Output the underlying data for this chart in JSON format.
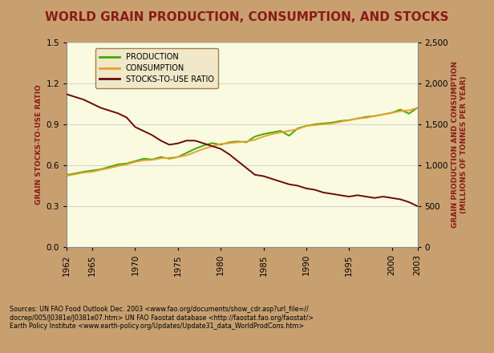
{
  "title": "WORLD GRAIN PRODUCTION, CONSUMPTION, AND STOCKS",
  "title_color": "#8B1A1A",
  "outer_bg": "#C8A070",
  "plot_bg": "#FAFAE0",
  "xlabel_ticks": [
    1962,
    1965,
    1970,
    1975,
    1980,
    1985,
    1990,
    1995,
    2000,
    2003
  ],
  "left_ylabel": "GRAIN STOCKS-TO-USE RATIO",
  "right_ylabel": "GRAIN PRODUCTION AND CONSUMPTION\n(MILLIONS OF TONNES PER YEAR)",
  "left_ylim": [
    0,
    1.5
  ],
  "right_ylim": [
    0,
    2500
  ],
  "left_yticks": [
    0,
    0.3,
    0.6,
    0.9,
    1.2,
    1.5
  ],
  "right_yticks": [
    0,
    500,
    1000,
    1500,
    2000,
    2500
  ],
  "source_text": "Sources: UN FAO Food Outlook Dec. 2003 <www.fao.org/documents/show_cdr.asp?url_file=//\ndocrep/005/J0381e/J0381e07.htm> UN FAO Faostat database <http://faostat.fao.org/faostat/>\nEarth Policy Institute <www.earth-policy.org/Updates/Update31_data_WorldProdCons.htm>",
  "legend_labels": [
    "PRODUCTION",
    "CONSUMPTION",
    "STOCKS-TO-USE RATIO"
  ],
  "prod_color": "#44AA00",
  "cons_color": "#E8A030",
  "stock_color": "#6B0A0A",
  "years": [
    1962,
    1963,
    1964,
    1965,
    1966,
    1967,
    1968,
    1969,
    1970,
    1971,
    1972,
    1973,
    1974,
    1975,
    1976,
    1977,
    1978,
    1979,
    1980,
    1981,
    1982,
    1983,
    1984,
    1985,
    1986,
    1987,
    1988,
    1989,
    1990,
    1991,
    1992,
    1993,
    1994,
    1995,
    1996,
    1997,
    1998,
    1999,
    2000,
    2001,
    2002,
    2003
  ],
  "production": [
    880,
    900,
    920,
    935,
    950,
    980,
    1010,
    1020,
    1050,
    1080,
    1070,
    1100,
    1080,
    1100,
    1150,
    1200,
    1240,
    1270,
    1250,
    1280,
    1290,
    1280,
    1350,
    1380,
    1400,
    1420,
    1360,
    1450,
    1480,
    1500,
    1510,
    1520,
    1540,
    1550,
    1570,
    1590,
    1600,
    1620,
    1640,
    1680,
    1630,
    1700
  ],
  "consumption": [
    870,
    890,
    910,
    920,
    945,
    965,
    990,
    1010,
    1040,
    1060,
    1065,
    1085,
    1090,
    1100,
    1120,
    1160,
    1200,
    1230,
    1260,
    1270,
    1280,
    1290,
    1310,
    1350,
    1380,
    1400,
    1420,
    1440,
    1480,
    1490,
    1500,
    1510,
    1530,
    1550,
    1570,
    1580,
    1600,
    1620,
    1640,
    1660,
    1670,
    1700
  ],
  "stocks_ratio": [
    1.12,
    1.1,
    1.08,
    1.05,
    1.02,
    1.0,
    0.98,
    0.95,
    0.88,
    0.85,
    0.82,
    0.78,
    0.75,
    0.76,
    0.78,
    0.78,
    0.76,
    0.74,
    0.72,
    0.68,
    0.63,
    0.58,
    0.53,
    0.52,
    0.5,
    0.48,
    0.46,
    0.45,
    0.43,
    0.42,
    0.4,
    0.39,
    0.38,
    0.37,
    0.38,
    0.37,
    0.36,
    0.37,
    0.36,
    0.35,
    0.33,
    0.3
  ]
}
